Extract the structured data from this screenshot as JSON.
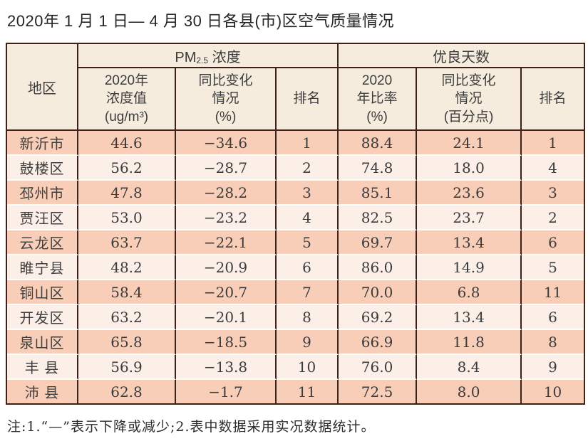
{
  "page": {
    "title": "2020年 1 月 1 日— 4 月 30 日各县(市)区空气质量情况",
    "footnote": "注:1.“—”表示下降或减少;2.表中数据采用实况数据统计。"
  },
  "colors": {
    "grid_border": "#3a221a",
    "header_bg": "#f6ecdd",
    "row_odd_bg": "#f9ceb8",
    "row_even_bg": "#fcefe8"
  },
  "table": {
    "corner_header": "地区",
    "group_headers": {
      "pm25_prefix": "PM",
      "pm25_sub": "2.5",
      "pm25_suffix": " 浓度",
      "good_days": "优良天数"
    },
    "sub_headers": {
      "pm_value": "2020年\n浓度值\n(ug/m³)",
      "pm_change": "同比变化\n情况\n(%)",
      "pm_rank": "排名",
      "ratio": "2020\n年比率\n(%)",
      "ratio_change": "同比变化\n情况\n(百分点)",
      "rank": "排名"
    },
    "row_keys": [
      "region",
      "pm_value",
      "pm_change",
      "pm_rank",
      "ratio",
      "ratio_change",
      "rank"
    ],
    "rows": [
      {
        "region": "新沂市",
        "pm_value": "44.6",
        "pm_change": "−34.6",
        "pm_rank": "1",
        "ratio": "88.4",
        "ratio_change": "24.1",
        "rank": "1"
      },
      {
        "region": "鼓楼区",
        "pm_value": "56.2",
        "pm_change": "−28.7",
        "pm_rank": "2",
        "ratio": "74.8",
        "ratio_change": "18.0",
        "rank": "4"
      },
      {
        "region": "邳州市",
        "pm_value": "47.8",
        "pm_change": "−28.2",
        "pm_rank": "3",
        "ratio": "85.1",
        "ratio_change": "23.6",
        "rank": "3"
      },
      {
        "region": "贾汪区",
        "pm_value": "53.0",
        "pm_change": "−23.2",
        "pm_rank": "4",
        "ratio": "82.5",
        "ratio_change": "23.7",
        "rank": "2"
      },
      {
        "region": "云龙区",
        "pm_value": "63.7",
        "pm_change": "−22.1",
        "pm_rank": "5",
        "ratio": "69.7",
        "ratio_change": "13.4",
        "rank": "6"
      },
      {
        "region": "睢宁县",
        "pm_value": "48.2",
        "pm_change": "−20.9",
        "pm_rank": "6",
        "ratio": "86.0",
        "ratio_change": "14.9",
        "rank": "5"
      },
      {
        "region": "铜山区",
        "pm_value": "58.4",
        "pm_change": "−20.7",
        "pm_rank": "7",
        "ratio": "70.0",
        "ratio_change": "6.8",
        "rank": "11"
      },
      {
        "region": "开发区",
        "pm_value": "63.2",
        "pm_change": "−20.1",
        "pm_rank": "8",
        "ratio": "69.2",
        "ratio_change": "13.4",
        "rank": "6"
      },
      {
        "region": "泉山区",
        "pm_value": "65.8",
        "pm_change": "−18.5",
        "pm_rank": "9",
        "ratio": "66.9",
        "ratio_change": "11.8",
        "rank": "8"
      },
      {
        "region": "丰 县",
        "pm_value": "56.9",
        "pm_change": "−13.8",
        "pm_rank": "10",
        "ratio": "76.0",
        "ratio_change": "8.4",
        "rank": "9"
      },
      {
        "region": "沛 县",
        "pm_value": "62.8",
        "pm_change": "−1.7",
        "pm_rank": "11",
        "ratio": "72.5",
        "ratio_change": "8.0",
        "rank": "10"
      }
    ]
  }
}
